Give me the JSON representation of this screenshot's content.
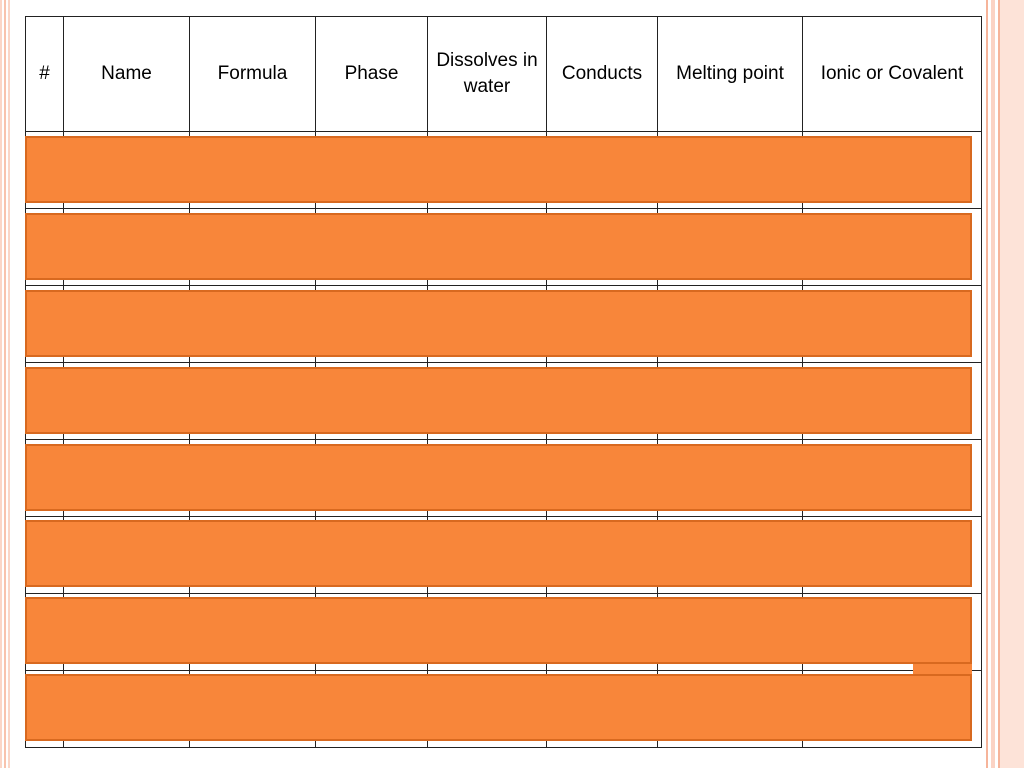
{
  "table": {
    "headers": [
      "#",
      "Name",
      "Formula",
      "Phase",
      "Dissolves in water",
      "Conducts",
      "Melting point",
      "Ionic or Covalent"
    ],
    "row_count": 8
  },
  "colors": {
    "overlay_fill": "#f8863a",
    "overlay_border": "#d8691f",
    "border_pink": "#fbd6c7",
    "border_salmon": "#f6b49a"
  }
}
